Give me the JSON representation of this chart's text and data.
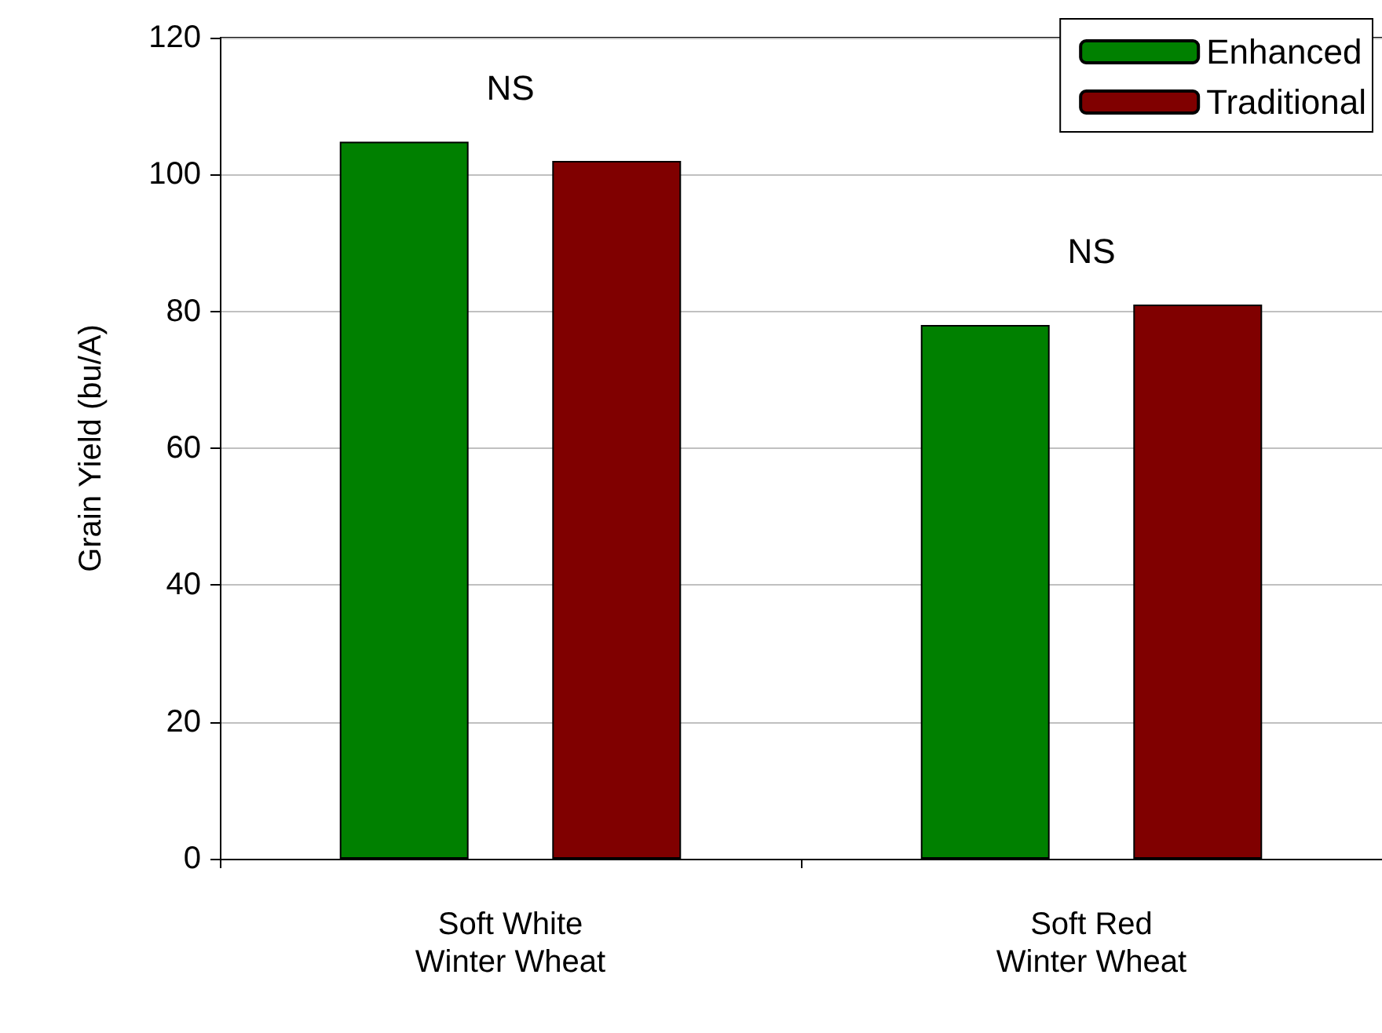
{
  "chart_data": {
    "type": "bar",
    "ylabel": "Grain Yield (bu/A)",
    "categories": [
      "Soft White\nWinter Wheat",
      "Soft Red\nWinter Wheat"
    ],
    "series": [
      {
        "name": "Enhanced",
        "color": "#008000",
        "values": [
          104.8,
          78
        ]
      },
      {
        "name": "Traditional",
        "color": "#800000",
        "values": [
          102,
          81
        ]
      }
    ],
    "ylim": [
      0,
      120
    ],
    "yticks": [
      0,
      20,
      40,
      60,
      80,
      100,
      120
    ],
    "grid": "y",
    "legend": "top right",
    "annotations": [
      "NS",
      "NS"
    ]
  }
}
